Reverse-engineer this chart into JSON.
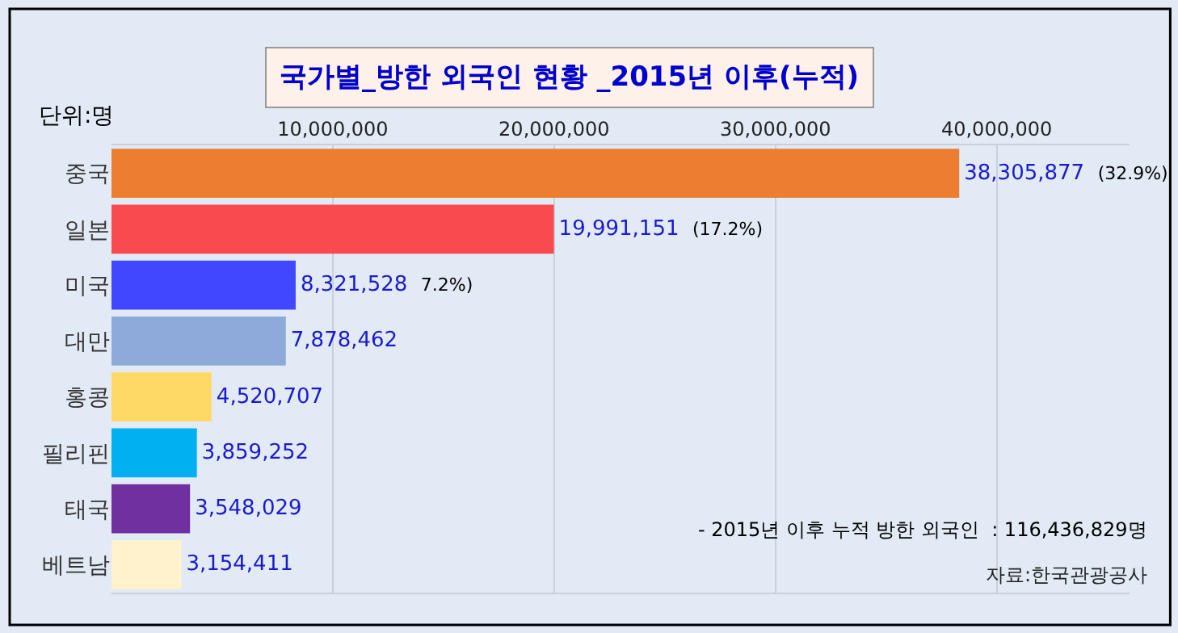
{
  "chart_data": {
    "type": "bar",
    "orientation": "horizontal",
    "title": "국가별_방한 외국인 현황 _2015년 이후(누적)",
    "categories": [
      "중국",
      "일본",
      "미국",
      "대만",
      "홍콩",
      "필리핀",
      "태국",
      "베트남"
    ],
    "values": [
      38305877,
      19991151,
      8321528,
      7878462,
      4520707,
      3859252,
      3548029,
      3154411
    ],
    "colors": [
      "#ed7d31",
      "#f94a4f",
      "#4047ff",
      "#8eaadb",
      "#ffd966",
      "#00b0f0",
      "#7030a0",
      "#fff2cc"
    ],
    "value_labels": [
      "38,305,877 (32.9%)",
      "19,991,151 (17.2%)",
      "8,321,528 7.2%)",
      "7,878,462",
      "4,520,707",
      "3,859,252",
      "3,548,029",
      "3,154,411"
    ],
    "xlim": [
      0,
      46000000
    ],
    "xticks": [
      {
        "value": 10000000,
        "label": "10,000,000"
      },
      {
        "value": 20000000,
        "label": "20,000,000"
      },
      {
        "value": 30000000,
        "label": "30,000,000"
      },
      {
        "value": 40000000,
        "label": "40,000,000"
      }
    ],
    "grid": "x",
    "annotations": [
      "단위:명",
      "- 2015년 이후 누적 방한 외국인  : 116,436,829명",
      "자료:한국관광공사"
    ]
  }
}
